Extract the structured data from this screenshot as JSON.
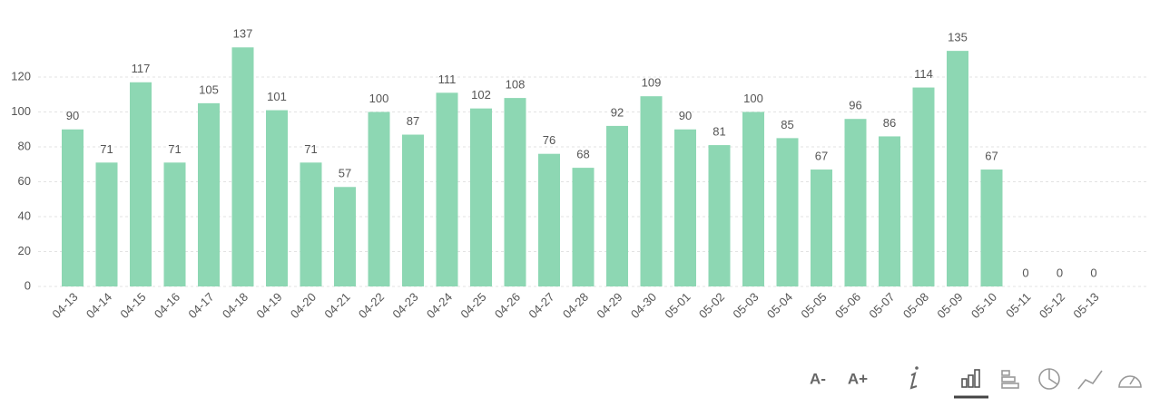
{
  "chart_data": {
    "type": "bar",
    "categories": [
      "04-13",
      "04-14",
      "04-15",
      "04-16",
      "04-17",
      "04-18",
      "04-19",
      "04-20",
      "04-21",
      "04-22",
      "04-23",
      "04-24",
      "04-25",
      "04-26",
      "04-27",
      "04-28",
      "04-29",
      "04-30",
      "05-01",
      "05-02",
      "05-03",
      "05-04",
      "05-05",
      "05-06",
      "05-07",
      "05-08",
      "05-09",
      "05-10",
      "05-11",
      "05-12",
      "05-13"
    ],
    "values": [
      90,
      71,
      117,
      71,
      105,
      137,
      101,
      71,
      57,
      100,
      87,
      111,
      102,
      108,
      76,
      68,
      92,
      109,
      90,
      81,
      100,
      85,
      67,
      96,
      86,
      114,
      135,
      67,
      0,
      0,
      0
    ],
    "color": "#8dd7b3",
    "ylim": [
      0,
      140
    ],
    "yticks": [
      0,
      20,
      40,
      60,
      80,
      100,
      120
    ],
    "grid": true
  },
  "toolbar": {
    "font_smaller": "A-",
    "font_larger": "A+"
  }
}
